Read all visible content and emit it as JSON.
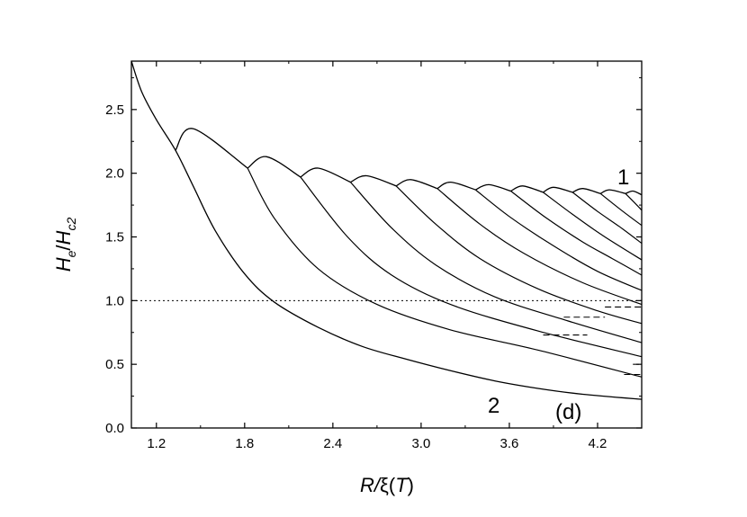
{
  "chart_data": {
    "type": "line",
    "panel_label": "(d)",
    "xlabel": {
      "main": "R/",
      "xi": "ξ",
      "open": "(",
      "T": "T",
      "close": ")"
    },
    "ylabel": {
      "H1": "H",
      "e": "e",
      "slash": "/",
      "H2": "H",
      "c2": "c2"
    },
    "xlim": [
      1.03,
      4.5
    ],
    "ylim": [
      0.0,
      2.88
    ],
    "xticks": [
      "1.2",
      "1.8",
      "2.4",
      "3.0",
      "3.6",
      "4.2"
    ],
    "xtick_values": [
      1.2,
      1.8,
      2.4,
      3.0,
      3.6,
      4.2
    ],
    "yticks": [
      "0.0",
      "0.5",
      "1.0",
      "1.5",
      "2.0",
      "2.5"
    ],
    "ytick_values": [
      0.0,
      0.5,
      1.0,
      1.5,
      2.0,
      2.5
    ],
    "annotations": [
      {
        "id": "curve-1-label",
        "text": "1",
        "x": 4.24,
        "y": 1.98
      },
      {
        "id": "curve-2-label",
        "text": "2",
        "x": 3.55,
        "y": 0.15
      }
    ],
    "reference_line": {
      "y": 1.0,
      "style": "dotted"
    },
    "lower_envelope": [
      [
        1.03,
        2.88
      ],
      [
        1.1,
        2.64
      ],
      [
        1.2,
        2.42
      ],
      [
        1.33,
        2.18
      ],
      [
        1.45,
        1.9
      ],
      [
        1.6,
        1.55
      ],
      [
        1.8,
        1.21
      ],
      [
        2.0,
        0.99
      ],
      [
        2.3,
        0.79
      ],
      [
        2.6,
        0.64
      ],
      [
        2.9,
        0.54
      ],
      [
        3.2,
        0.45
      ],
      [
        3.5,
        0.37
      ],
      [
        3.8,
        0.31
      ],
      [
        4.1,
        0.265
      ],
      [
        4.5,
        0.225
      ]
    ],
    "upper_branches": [
      {
        "n": 1,
        "start": [
          1.33,
          2.18
        ],
        "peak": [
          1.45,
          2.35
        ],
        "junction": [
          1.82,
          2.04
        ],
        "tail": [
          [
            1.82,
            2.04
          ],
          [
            2.0,
            1.65
          ],
          [
            2.3,
            1.25
          ],
          [
            2.7,
            0.97
          ],
          [
            3.2,
            0.77
          ],
          [
            3.8,
            0.61
          ],
          [
            4.5,
            0.4
          ]
        ]
      },
      {
        "n": 2,
        "start": [
          1.82,
          2.04
        ],
        "peak": [
          1.95,
          2.13
        ],
        "junction": [
          2.18,
          1.97
        ],
        "tail": [
          [
            2.18,
            1.97
          ],
          [
            2.5,
            1.5
          ],
          [
            2.8,
            1.2
          ],
          [
            3.2,
            0.97
          ],
          [
            3.8,
            0.76
          ],
          [
            4.5,
            0.56
          ]
        ]
      },
      {
        "n": 3,
        "start": [
          2.18,
          1.97
        ],
        "peak": [
          2.3,
          2.04
        ],
        "junction": [
          2.52,
          1.93
        ],
        "tail": [
          [
            2.52,
            1.93
          ],
          [
            2.8,
            1.57
          ],
          [
            3.1,
            1.28
          ],
          [
            3.5,
            1.03
          ],
          [
            4.0,
            0.84
          ],
          [
            4.5,
            0.67
          ]
        ]
      },
      {
        "n": 4,
        "start": [
          2.52,
          1.93
        ],
        "peak": [
          2.63,
          1.98
        ],
        "junction": [
          2.83,
          1.9
        ],
        "tail": [
          [
            2.83,
            1.9
          ],
          [
            3.1,
            1.6
          ],
          [
            3.4,
            1.33
          ],
          [
            3.8,
            1.09
          ],
          [
            4.2,
            0.92
          ],
          [
            4.5,
            0.82
          ]
        ]
      },
      {
        "n": 5,
        "start": [
          2.83,
          1.9
        ],
        "peak": [
          2.93,
          1.95
        ],
        "junction": [
          3.11,
          1.88
        ],
        "tail": [
          [
            3.11,
            1.88
          ],
          [
            3.4,
            1.6
          ],
          [
            3.7,
            1.37
          ],
          [
            4.1,
            1.14
          ],
          [
            4.5,
            0.97
          ]
        ]
      },
      {
        "n": 6,
        "start": [
          3.11,
          1.88
        ],
        "peak": [
          3.2,
          1.93
        ],
        "junction": [
          3.37,
          1.87
        ],
        "tail": [
          [
            3.37,
            1.87
          ],
          [
            3.6,
            1.66
          ],
          [
            3.9,
            1.43
          ],
          [
            4.2,
            1.23
          ],
          [
            4.5,
            1.08
          ]
        ]
      },
      {
        "n": 7,
        "start": [
          3.37,
          1.87
        ],
        "peak": [
          3.46,
          1.91
        ],
        "junction": [
          3.61,
          1.86
        ],
        "tail": [
          [
            3.61,
            1.86
          ],
          [
            3.85,
            1.65
          ],
          [
            4.1,
            1.46
          ],
          [
            4.3,
            1.33
          ],
          [
            4.5,
            1.2
          ]
        ]
      },
      {
        "n": 8,
        "start": [
          3.61,
          1.86
        ],
        "peak": [
          3.69,
          1.9
        ],
        "junction": [
          3.83,
          1.85
        ],
        "tail": [
          [
            3.83,
            1.85
          ],
          [
            4.05,
            1.66
          ],
          [
            4.25,
            1.5
          ],
          [
            4.5,
            1.32
          ]
        ]
      },
      {
        "n": 9,
        "start": [
          3.83,
          1.85
        ],
        "peak": [
          3.9,
          1.89
        ],
        "junction": [
          4.03,
          1.85
        ],
        "tail": [
          [
            4.03,
            1.85
          ],
          [
            4.2,
            1.7
          ],
          [
            4.35,
            1.58
          ],
          [
            4.5,
            1.45
          ]
        ]
      },
      {
        "n": 10,
        "start": [
          4.03,
          1.85
        ],
        "peak": [
          4.1,
          1.88
        ],
        "junction": [
          4.22,
          1.84
        ],
        "tail": [
          [
            4.22,
            1.84
          ],
          [
            4.35,
            1.72
          ],
          [
            4.5,
            1.59
          ]
        ]
      },
      {
        "n": 11,
        "start": [
          4.22,
          1.84
        ],
        "peak": [
          4.28,
          1.87
        ],
        "junction": [
          4.39,
          1.84
        ],
        "tail": [
          [
            4.39,
            1.84
          ],
          [
            4.45,
            1.77
          ],
          [
            4.5,
            1.71
          ]
        ]
      },
      {
        "n": 12,
        "start": [
          4.39,
          1.84
        ],
        "peak": [
          4.44,
          1.86
        ],
        "junction": [
          4.5,
          1.83
        ],
        "tail": []
      }
    ],
    "dashed_segments": [
      {
        "x": [
          3.83,
          4.13
        ],
        "y": 0.73
      },
      {
        "x": [
          3.97,
          4.25
        ],
        "y": 0.87
      },
      {
        "x": [
          4.25,
          4.5
        ],
        "y": 0.95
      },
      {
        "x": [
          4.38,
          4.5
        ],
        "y": 0.42
      },
      {
        "x": [
          4.44,
          4.5
        ],
        "y": 0.5
      }
    ]
  }
}
